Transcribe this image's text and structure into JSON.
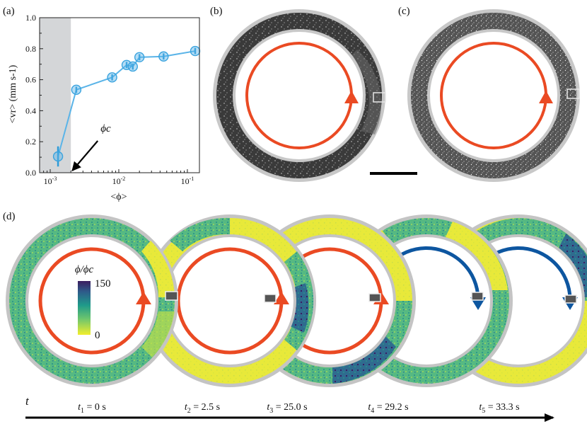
{
  "panels": {
    "a": "(a)",
    "b": "(b)",
    "c": "(c)",
    "d": "(d)"
  },
  "chart_data": {
    "type": "line",
    "xscale": "log",
    "xlim": [
      0.0007,
      0.15
    ],
    "ylim": [
      0.0,
      1.0
    ],
    "xlabel": "<ϕ>",
    "ylabel": "<vr> (mm s-1)",
    "xtick_labels": [
      {
        "base": "10",
        "exp": "-3",
        "value": 0.001
      },
      {
        "base": "10",
        "exp": "-2",
        "value": 0.01
      },
      {
        "base": "10",
        "exp": "-1",
        "value": 0.1
      }
    ],
    "ytick_labels": [
      "0.0",
      "0.2",
      "0.4",
      "0.6",
      "0.8",
      "1.0"
    ],
    "ytick_values": [
      0.0,
      0.2,
      0.4,
      0.6,
      0.8,
      1.0
    ],
    "shaded_region": [
      0.0007,
      0.002
    ],
    "x": [
      0.0013,
      0.0024,
      0.008,
      0.013,
      0.016,
      0.02,
      0.045,
      0.13
    ],
    "y": [
      0.105,
      0.535,
      0.615,
      0.695,
      0.685,
      0.745,
      0.75,
      0.785
    ],
    "yerr": [
      0.065,
      0.02,
      0.02,
      0.02,
      0.02,
      0.02,
      0.02,
      0.02
    ],
    "annotation": {
      "text": "ϕc",
      "x": 0.002,
      "y": 0.0
    }
  },
  "colors": {
    "series": "#5ab4e8",
    "shade": "#d4d6d8",
    "ring_gray": "#bdbdbd",
    "orange": "#ea4a23",
    "blue": "#0d56a0",
    "field_yellow": "#eaea35",
    "field_green": "#4db888",
    "field_purple": "#3c1b64",
    "photo_dark": "#3a3a3a"
  },
  "colorbar": {
    "label": "ϕ/ϕc",
    "max_label": "150",
    "min_label": "0"
  },
  "rings_d": [
    {
      "direction": "ccw",
      "arrow": "orange",
      "density": "mixed"
    },
    {
      "direction": "ccw",
      "arrow": "orange",
      "density": "right"
    },
    {
      "direction": "ccw",
      "arrow": "orange",
      "density": "bottom"
    },
    {
      "direction": "cw",
      "arrow": "blue",
      "density": "mixed"
    },
    {
      "direction": "cw",
      "arrow": "blue",
      "density": "top"
    }
  ],
  "timeline": {
    "axis": "t",
    "labels": [
      {
        "sym": "t",
        "sub": "1",
        "rest": " = 0 s"
      },
      {
        "sym": "t",
        "sub": "2",
        "rest": " = 2.5 s"
      },
      {
        "sym": "t",
        "sub": "3",
        "rest": " = 25.0 s"
      },
      {
        "sym": "t",
        "sub": "4",
        "rest": " = 29.2 s"
      },
      {
        "sym": "t",
        "sub": "5",
        "rest": " = 33.3 s"
      }
    ]
  }
}
